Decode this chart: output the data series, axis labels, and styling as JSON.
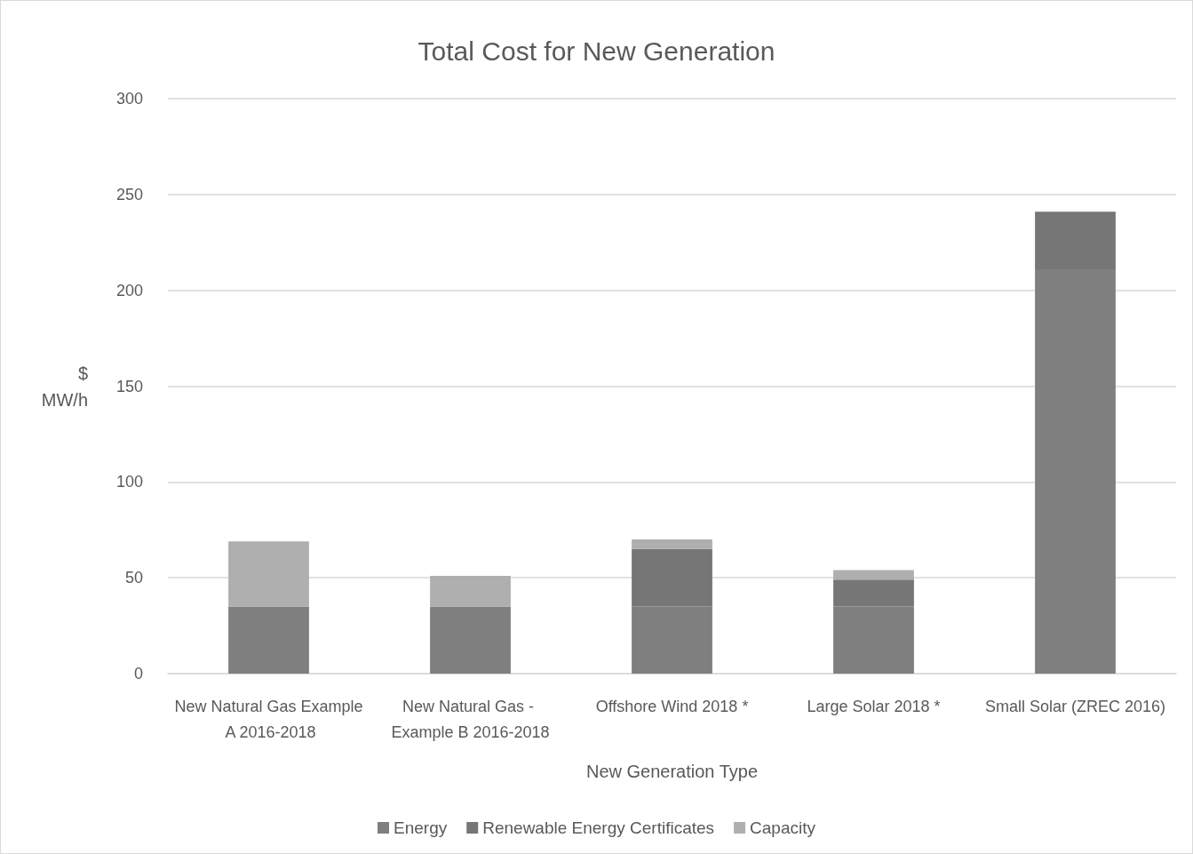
{
  "chart_data": {
    "type": "bar",
    "title": "Total Cost for New Generation",
    "xlabel": "New Generation Type",
    "ylabel": "$\nMW/h",
    "categories": [
      "New Natural Gas Example A 2016-2018",
      "New Natural Gas - Example B 2016-2018",
      "Offshore Wind 2018 *",
      "Large Solar 2018 *",
      "Small Solar (ZREC 2016)"
    ],
    "series": [
      {
        "name": "Energy",
        "color": "#7f7f7f",
        "values": [
          35,
          35,
          35,
          35,
          211
        ]
      },
      {
        "name": "Renewable Energy Certificates",
        "color": "#767676",
        "values": [
          null,
          null,
          30,
          14,
          30
        ]
      },
      {
        "name": "Capacity",
        "color": "#afafaf",
        "values": [
          34,
          16,
          5,
          5,
          null
        ]
      }
    ],
    "stacked": true,
    "ylim": [
      0,
      300
    ],
    "yticks": [
      0,
      50,
      100,
      150,
      200,
      250,
      300
    ],
    "grid": "y",
    "legend": "bottom"
  }
}
